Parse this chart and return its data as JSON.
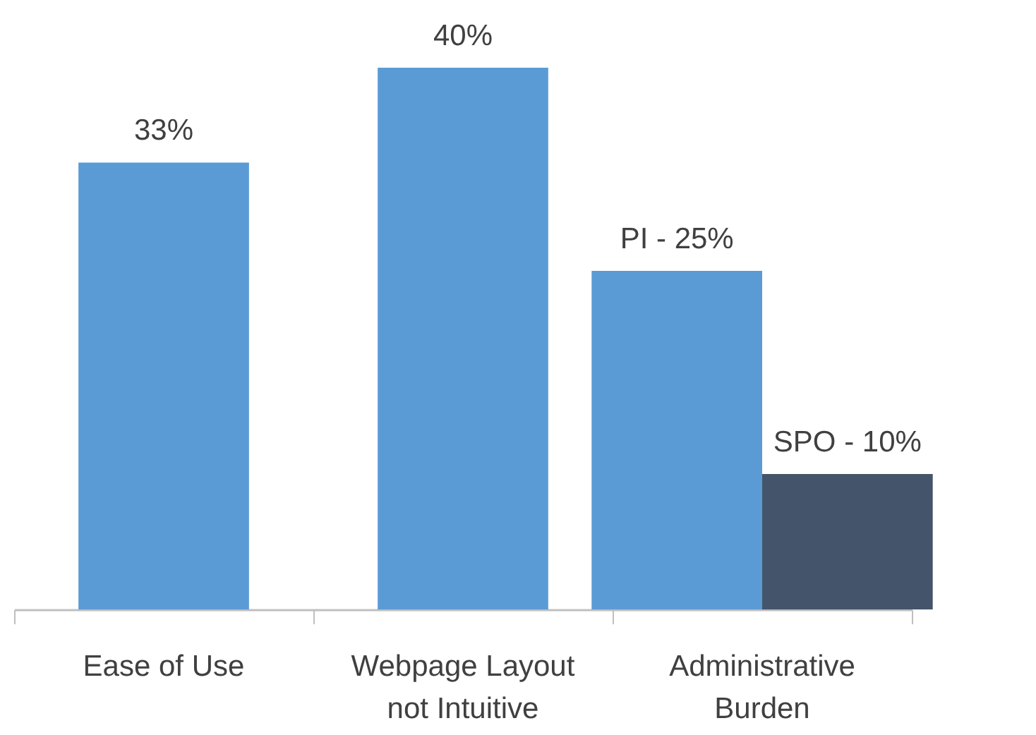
{
  "chart_data": {
    "type": "bar",
    "categories": [
      "Ease of Use",
      "Webpage Layout not Intuitive",
      "Administrative Burden"
    ],
    "series": [
      {
        "color": "#5b9bd5",
        "values": [
          33,
          40,
          25
        ],
        "value_labels": [
          "33%",
          "40%",
          null
        ]
      },
      {
        "color": "#44546a",
        "values": [
          null,
          null,
          10
        ]
      }
    ],
    "annotations": [
      {
        "text": "PI - 25%",
        "x": "Administrative Burden",
        "y": 25
      },
      {
        "text": "SPO - 10%",
        "x": "Administrative Burden",
        "y": 10
      }
    ],
    "ylim": [
      0,
      45
    ]
  }
}
